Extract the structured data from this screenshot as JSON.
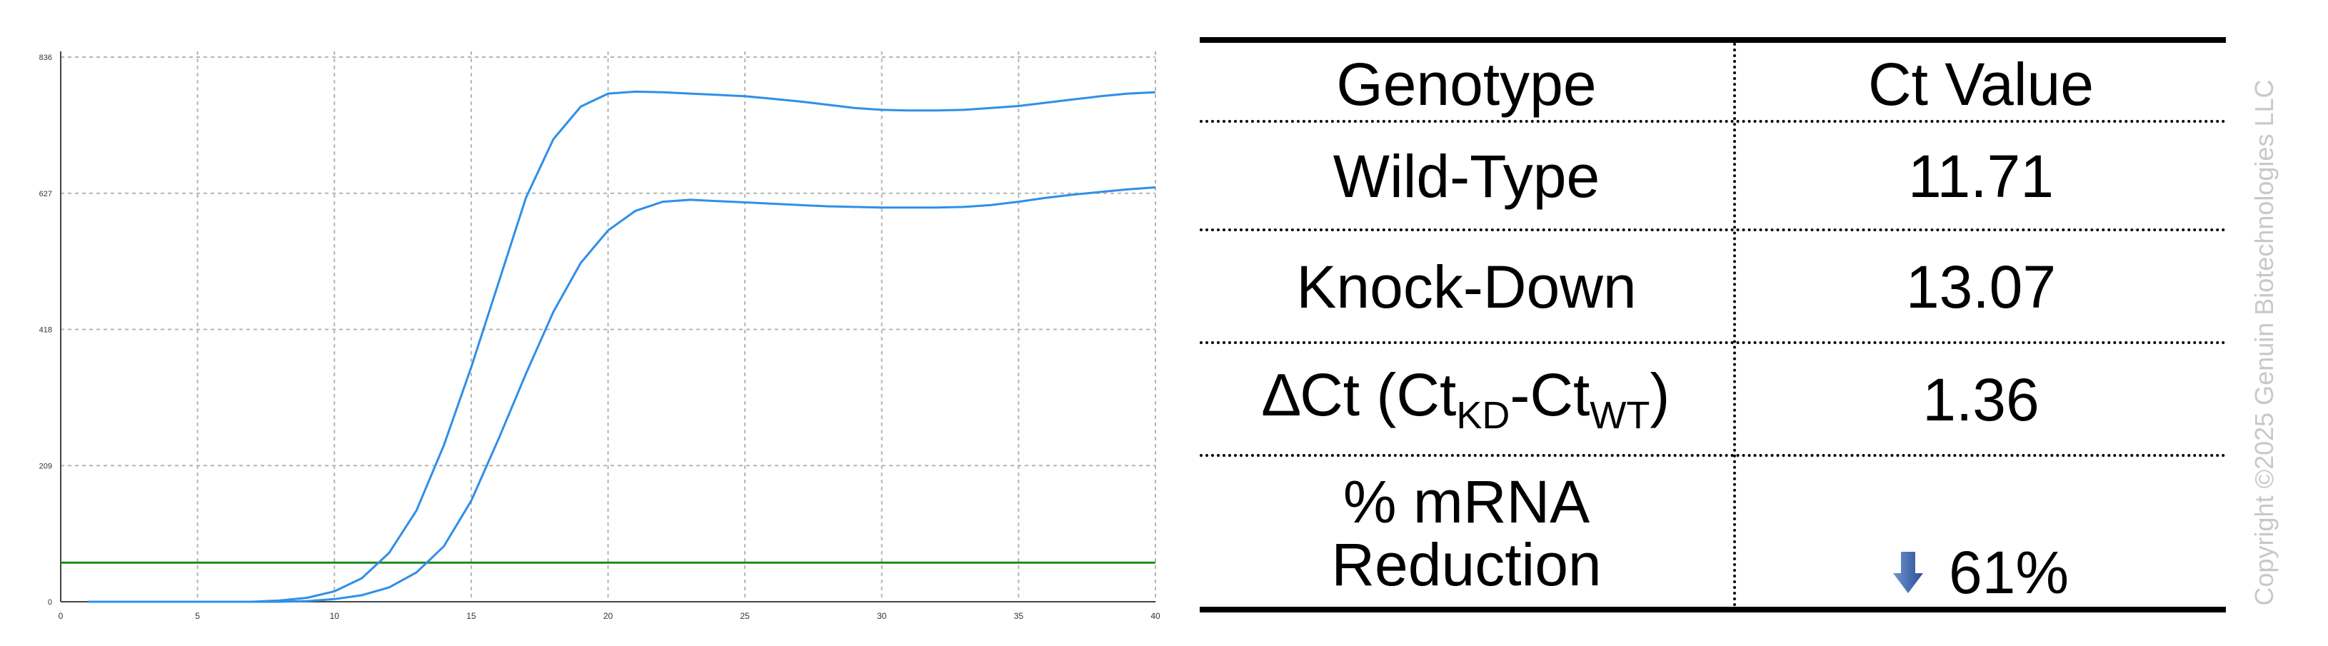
{
  "chart_data": {
    "type": "line",
    "title": "",
    "xlabel": "",
    "ylabel": "",
    "xlim": [
      0,
      40
    ],
    "ylim": [
      0,
      836
    ],
    "x_ticks": [
      "0",
      "5",
      "10",
      "15",
      "20",
      "25",
      "30",
      "35",
      "40"
    ],
    "y_ticks": [
      "0",
      "209",
      "418",
      "627",
      "836"
    ],
    "grid": true,
    "series": [
      {
        "color": "#2f8fe8",
        "x": [
          1,
          2,
          3,
          4,
          5,
          6,
          7,
          8,
          9,
          10,
          11,
          12,
          13,
          14,
          15,
          16,
          17,
          18,
          19,
          20,
          21,
          22,
          23,
          24,
          25,
          26,
          27,
          28,
          29,
          30,
          31,
          32,
          33,
          34,
          35,
          36,
          37,
          38,
          39,
          40
        ],
        "values": [
          0,
          0,
          0,
          0,
          0,
          0,
          0,
          2,
          6,
          16,
          36,
          75,
          140,
          240,
          360,
          490,
          620,
          710,
          760,
          780,
          783,
          782,
          780,
          778,
          776,
          772,
          768,
          763,
          758,
          755,
          754,
          754,
          755,
          758,
          761,
          766,
          771,
          776,
          780,
          782
        ]
      },
      {
        "color": "#2f8fe8",
        "x": [
          1,
          2,
          3,
          4,
          5,
          6,
          7,
          8,
          9,
          10,
          11,
          12,
          13,
          14,
          15,
          16,
          17,
          18,
          19,
          20,
          21,
          22,
          23,
          24,
          25,
          26,
          27,
          28,
          29,
          30,
          31,
          32,
          33,
          34,
          35,
          36,
          37,
          38,
          39,
          40
        ],
        "values": [
          0,
          0,
          0,
          0,
          0,
          0,
          0,
          0,
          1,
          4,
          10,
          22,
          45,
          85,
          155,
          250,
          350,
          445,
          520,
          570,
          600,
          614,
          617,
          615,
          613,
          611,
          609,
          607,
          606,
          605,
          605,
          605,
          606,
          609,
          614,
          620,
          625,
          629,
          633,
          636
        ]
      }
    ],
    "threshold": {
      "value": 60,
      "color": "#1a8a1a"
    }
  },
  "table": {
    "headers": {
      "genotype": "Genotype",
      "ct_value": "Ct Value"
    },
    "rows": {
      "wild_type": {
        "genotype": "Wild-Type",
        "value": "11.71"
      },
      "knock_down": {
        "genotype": "Knock-Down",
        "value": "13.07"
      },
      "delta": {
        "prefix": "∆Ct (Ct",
        "sub_kd": "KD",
        "mid": "-Ct",
        "sub_wt": "WT",
        "suffix": ")",
        "value": "1.36"
      },
      "reduction": {
        "line1": "% mRNA",
        "line2": "Reduction",
        "value": "61%",
        "arrow_icon": "down-arrow-icon",
        "arrow_color": "#2e5ea8"
      }
    }
  },
  "copyright": "Copyright ©2025 Genuin Biotechnologies LLC"
}
